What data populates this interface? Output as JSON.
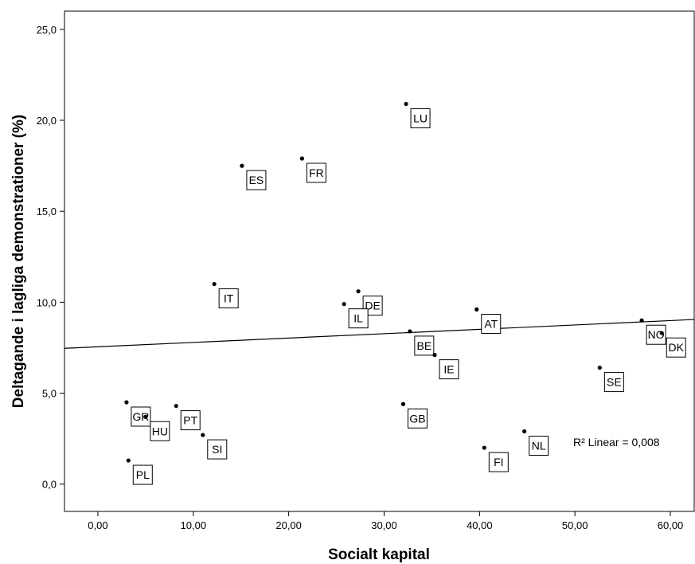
{
  "chart_data": {
    "type": "scatter",
    "xlabel": "Socialt kapital",
    "ylabel": "Deltagande i lagliga demonstrationer (%)",
    "xlim": [
      -3.5,
      62.5
    ],
    "ylim": [
      -1.5,
      26.0
    ],
    "x_ticks": [
      0,
      10,
      20,
      30,
      40,
      50,
      60
    ],
    "x_tick_labels": [
      "0,00",
      "10,00",
      "20,00",
      "30,00",
      "40,00",
      "50,00",
      "60,00"
    ],
    "y_ticks": [
      0,
      5,
      10,
      15,
      20,
      25
    ],
    "y_tick_labels": [
      "0,0",
      "5,0",
      "10,0",
      "15,0",
      "20,0",
      "25,0"
    ],
    "points": [
      {
        "label": "LU",
        "x": 32.3,
        "y": 20.9
      },
      {
        "label": "FR",
        "x": 21.4,
        "y": 17.9
      },
      {
        "label": "ES",
        "x": 15.1,
        "y": 17.5
      },
      {
        "label": "IT",
        "x": 12.2,
        "y": 11.0
      },
      {
        "label": "DE",
        "x": 27.3,
        "y": 10.6
      },
      {
        "label": "IL",
        "x": 25.8,
        "y": 9.9
      },
      {
        "label": "BE",
        "x": 32.7,
        "y": 8.4
      },
      {
        "label": "AT",
        "x": 39.7,
        "y": 9.6
      },
      {
        "label": "NO",
        "x": 57.0,
        "y": 9.0
      },
      {
        "label": "DK",
        "x": 59.1,
        "y": 8.3
      },
      {
        "label": "IE",
        "x": 35.3,
        "y": 7.1
      },
      {
        "label": "SE",
        "x": 52.6,
        "y": 6.4
      },
      {
        "label": "GR",
        "x": 3.0,
        "y": 4.5
      },
      {
        "label": "GB",
        "x": 32.0,
        "y": 4.4
      },
      {
        "label": "HU",
        "x": 5.0,
        "y": 3.7
      },
      {
        "label": "PT",
        "x": 8.2,
        "y": 4.3
      },
      {
        "label": "SI",
        "x": 11.0,
        "y": 2.7
      },
      {
        "label": "NL",
        "x": 44.7,
        "y": 2.9
      },
      {
        "label": "FI",
        "x": 40.5,
        "y": 2.0
      },
      {
        "label": "PL",
        "x": 3.2,
        "y": 1.3
      }
    ],
    "fit_line": {
      "intercept": 7.55,
      "slope": 0.024
    },
    "annotation": {
      "text": "R² Linear = 0,008"
    },
    "grid": false,
    "legend": "none"
  }
}
